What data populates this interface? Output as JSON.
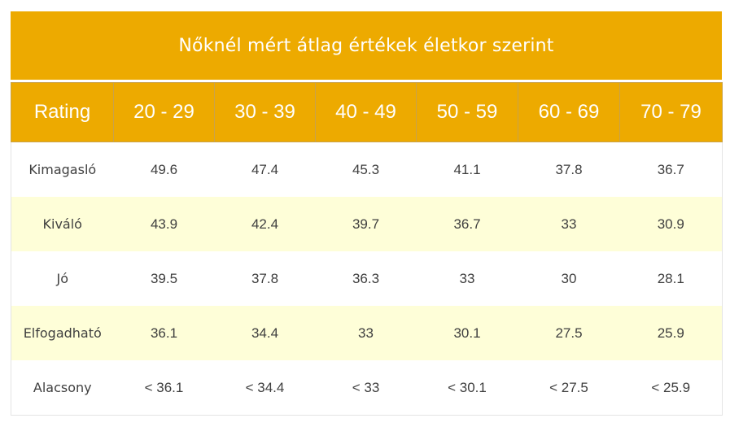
{
  "title": "Nőknél mért átlag értékek életkor szerint",
  "colors": {
    "header_bg": "#edaa00",
    "header_text": "#ffffff",
    "stripe_bg": "#fefed8",
    "body_text": "#3f3f3f"
  },
  "table": {
    "headers": [
      "Rating",
      "20 - 29",
      "30 - 39",
      "40 - 49",
      "50 - 59",
      "60 - 69",
      "70 - 79"
    ],
    "rows": [
      {
        "label": "Kimagasló",
        "values": [
          "49.6",
          "47.4",
          "45.3",
          "41.1",
          "37.8",
          "36.7"
        ]
      },
      {
        "label": "Kiváló",
        "values": [
          "43.9",
          "42.4",
          "39.7",
          "36.7",
          "33",
          "30.9"
        ]
      },
      {
        "label": "Jó",
        "values": [
          "39.5",
          "37.8",
          "36.3",
          "33",
          "30",
          "28.1"
        ]
      },
      {
        "label": "Elfogadható",
        "values": [
          "36.1",
          "34.4",
          "33",
          "30.1",
          "27.5",
          "25.9"
        ]
      },
      {
        "label": "Alacsony",
        "values": [
          "< 36.1",
          "< 34.4",
          "< 33",
          "< 30.1",
          "< 27.5",
          "< 25.9"
        ]
      }
    ]
  }
}
